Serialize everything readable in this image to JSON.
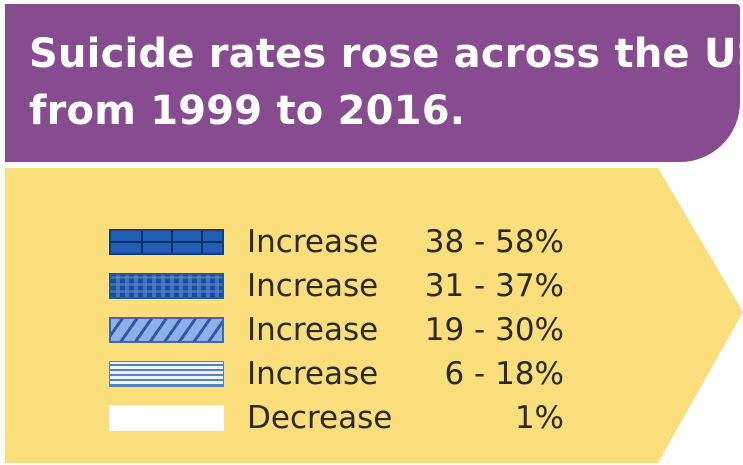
{
  "header": {
    "title_line1": "Suicide rates rose across the US",
    "title_line2": "from 1999 to 2016."
  },
  "colors": {
    "header_background": "#874b8f",
    "panel_background": "#fbde7c",
    "title_text": "#ffffff",
    "legend_text": "#2a2a2a"
  },
  "legend": {
    "items": [
      {
        "label": "Increase",
        "range": "38 - 58%",
        "pattern": "solid-dark-blue-grid"
      },
      {
        "label": "Increase",
        "range": "31 - 37%",
        "pattern": "dotted-blue"
      },
      {
        "label": "Increase",
        "range": "19 - 30%",
        "pattern": "diagonal-hatch-blue"
      },
      {
        "label": "Increase",
        "range": "6 - 18%",
        "pattern": "horizontal-lines-light-blue"
      },
      {
        "label": "Decrease",
        "range": "1%",
        "pattern": "white"
      }
    ]
  }
}
